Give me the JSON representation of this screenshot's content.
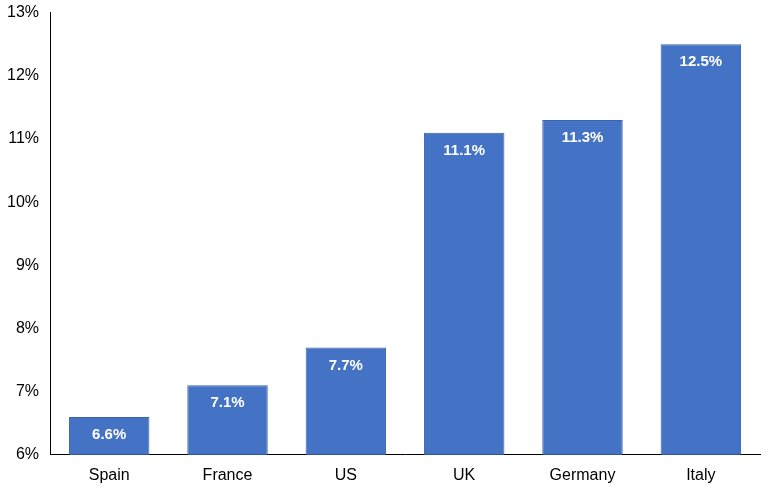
{
  "chart_data": {
    "type": "bar",
    "categories": [
      "Spain",
      "France",
      "US",
      "UK",
      "Germany",
      "Italy"
    ],
    "values": [
      6.6,
      7.1,
      7.7,
      11.1,
      11.3,
      12.5
    ],
    "value_labels": [
      "6.6%",
      "7.1%",
      "7.7%",
      "11.1%",
      "11.3%",
      "12.5%"
    ],
    "color": "#4472c4",
    "ylim": [
      6,
      13
    ],
    "yticks": [
      {
        "value": 6,
        "label": "6%"
      },
      {
        "value": 7,
        "label": "7%"
      },
      {
        "value": 8,
        "label": "8%"
      },
      {
        "value": 9,
        "label": "9%"
      },
      {
        "value": 10,
        "label": "10%"
      },
      {
        "value": 11,
        "label": "11%"
      },
      {
        "value": 12,
        "label": "12%"
      },
      {
        "value": 13,
        "label": "13%"
      }
    ],
    "grid": false,
    "data_labels": true
  }
}
